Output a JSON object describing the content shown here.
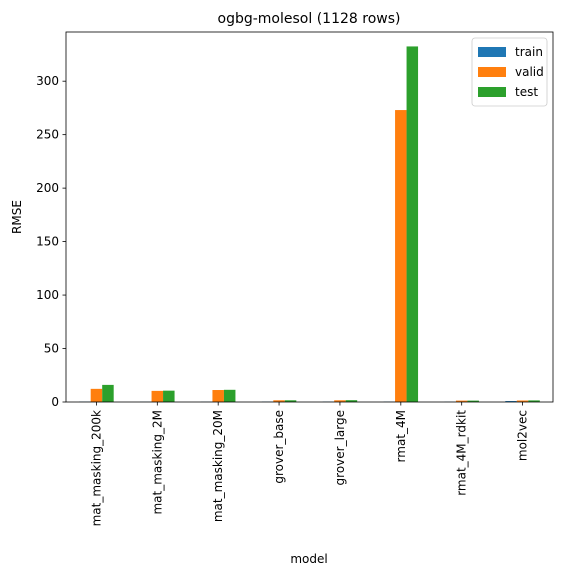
{
  "chart_data": {
    "type": "bar",
    "title": "ogbg-molesol (1128 rows)",
    "xlabel": "model",
    "ylabel": "RMSE",
    "ylim": [
      0,
      346
    ],
    "yticks": [
      0,
      50,
      100,
      150,
      200,
      250,
      300
    ],
    "grid": false,
    "legend_position": "top-right",
    "categories": [
      "mat_masking_200k",
      "mat_masking_2M",
      "mat_masking_20M",
      "grover_base",
      "grover_large",
      "rmat_4M",
      "rmat_4M_rdkit",
      "mol2vec"
    ],
    "series": [
      {
        "name": "train",
        "color": "#1f77b4",
        "values": [
          0.3,
          0.2,
          0.2,
          0.3,
          0.3,
          0.3,
          0.2,
          0.9
        ]
      },
      {
        "name": "valid",
        "color": "#ff7f0e",
        "values": [
          12.3,
          10.4,
          11.2,
          1.6,
          1.6,
          273.0,
          1.3,
          1.4
        ]
      },
      {
        "name": "test",
        "color": "#2ca02c",
        "values": [
          16.0,
          10.6,
          11.4,
          1.6,
          1.7,
          332.5,
          1.3,
          1.5
        ]
      }
    ]
  }
}
